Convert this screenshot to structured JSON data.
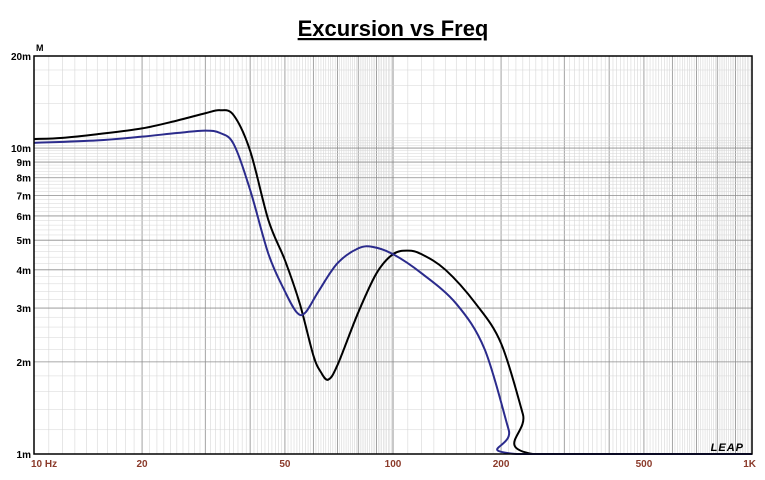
{
  "chart_data": {
    "type": "line",
    "title": "Excursion vs Freq",
    "y_unit": "M",
    "x_scale": "log",
    "y_scale": "log",
    "xlim": [
      10,
      1000
    ],
    "ylim": [
      0.001,
      0.02
    ],
    "grid": true,
    "x_ticks": [
      {
        "value": 10,
        "label": "10  Hz"
      },
      {
        "value": 20,
        "label": "20"
      },
      {
        "value": 50,
        "label": "50"
      },
      {
        "value": 100,
        "label": "100"
      },
      {
        "value": 200,
        "label": "200"
      },
      {
        "value": 500,
        "label": "500"
      },
      {
        "value": 1000,
        "label": "1K"
      }
    ],
    "y_ticks": [
      {
        "value": 0.02,
        "label": "20m"
      },
      {
        "value": 0.01,
        "label": "10m"
      },
      {
        "value": 0.009,
        "label": "9m"
      },
      {
        "value": 0.008,
        "label": "8m"
      },
      {
        "value": 0.007,
        "label": "7m"
      },
      {
        "value": 0.006,
        "label": "6m"
      },
      {
        "value": 0.005,
        "label": "5m"
      },
      {
        "value": 0.004,
        "label": "4m"
      },
      {
        "value": 0.003,
        "label": "3m"
      },
      {
        "value": 0.002,
        "label": "2m"
      },
      {
        "value": 0.001,
        "label": "1m"
      }
    ],
    "logo": "LEAP",
    "series": [
      {
        "color": "#000000",
        "points": [
          [
            10,
            0.0107
          ],
          [
            12,
            0.0108
          ],
          [
            15,
            0.0111
          ],
          [
            20,
            0.0116
          ],
          [
            25,
            0.0123
          ],
          [
            30,
            0.013
          ],
          [
            33,
            0.0133
          ],
          [
            36,
            0.0128
          ],
          [
            40,
            0.0098
          ],
          [
            45,
            0.0058
          ],
          [
            50,
            0.0043
          ],
          [
            55,
            0.0031
          ],
          [
            60,
            0.0021
          ],
          [
            63,
            0.00185
          ],
          [
            66,
            0.00175
          ],
          [
            70,
            0.00195
          ],
          [
            80,
            0.0029
          ],
          [
            90,
            0.0039
          ],
          [
            100,
            0.0045
          ],
          [
            110,
            0.00462
          ],
          [
            120,
            0.0045
          ],
          [
            140,
            0.004
          ],
          [
            170,
            0.0031
          ],
          [
            200,
            0.0023
          ],
          [
            230,
            0.00135
          ],
          [
            245,
            0.001
          ],
          [
            1000,
            0.001
          ]
        ]
      },
      {
        "color": "#2b2b8c",
        "points": [
          [
            10,
            0.0104
          ],
          [
            15,
            0.0106
          ],
          [
            20,
            0.0109
          ],
          [
            25,
            0.0112
          ],
          [
            30,
            0.0114
          ],
          [
            33,
            0.0112
          ],
          [
            36,
            0.0103
          ],
          [
            40,
            0.0073
          ],
          [
            45,
            0.0045
          ],
          [
            50,
            0.0034
          ],
          [
            54,
            0.0029
          ],
          [
            57,
            0.0029
          ],
          [
            62,
            0.0034
          ],
          [
            70,
            0.0042
          ],
          [
            80,
            0.0047
          ],
          [
            88,
            0.00475
          ],
          [
            100,
            0.0045
          ],
          [
            120,
            0.0039
          ],
          [
            150,
            0.0031
          ],
          [
            180,
            0.0022
          ],
          [
            210,
            0.0012
          ],
          [
            220,
            0.001
          ],
          [
            1000,
            0.001
          ]
        ]
      }
    ]
  }
}
